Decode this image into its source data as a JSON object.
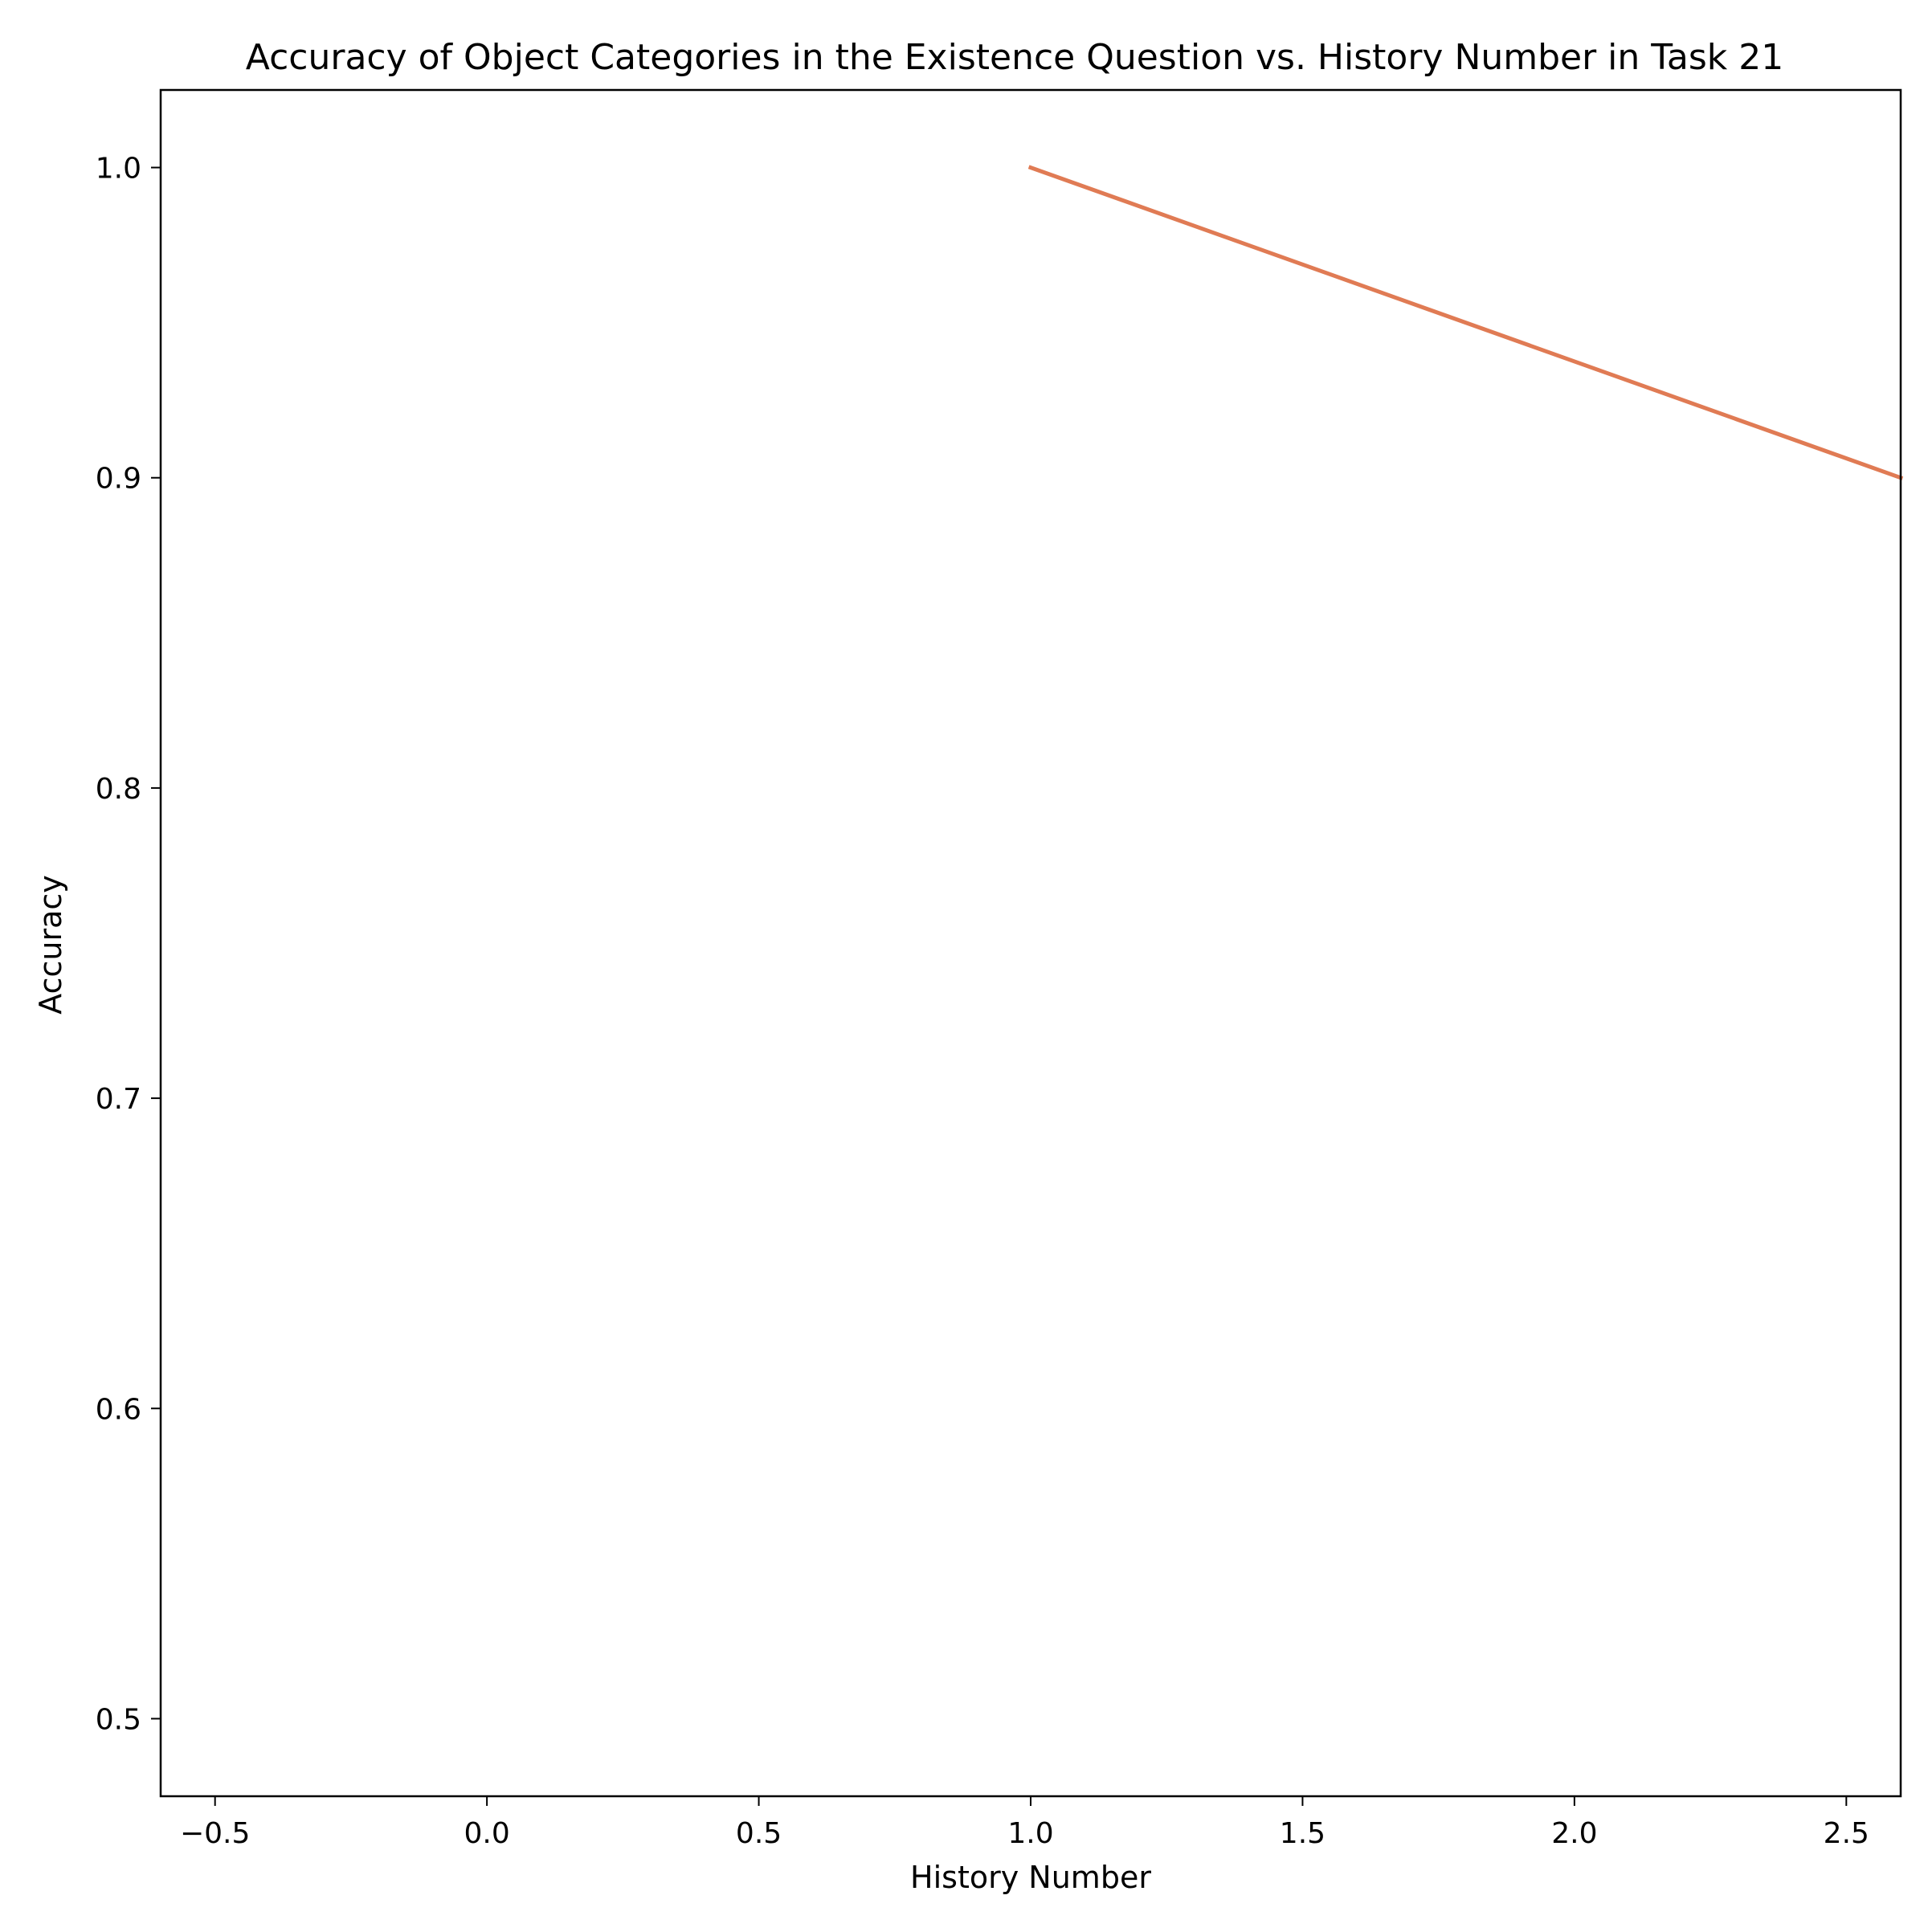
{
  "chart_data": {
    "type": "line",
    "title": "Accuracy of Object Categories in the Existence Question vs. History Number in Task 21",
    "xlabel": "History Number",
    "ylabel": "Accuracy",
    "xlim": [
      -0.6,
      2.6
    ],
    "ylim": [
      0.475,
      1.025
    ],
    "xticks": [
      -0.5,
      0.0,
      0.5,
      1.0,
      1.5,
      2.0,
      2.5
    ],
    "xtick_labels": [
      "−0.5",
      "0.0",
      "0.5",
      "1.0",
      "1.5",
      "2.0",
      "2.5"
    ],
    "yticks": [
      0.5,
      0.6,
      0.7,
      0.8,
      0.9,
      1.0
    ],
    "ytick_labels": [
      "0.5",
      "0.6",
      "0.7",
      "0.8",
      "0.9",
      "1.0"
    ],
    "grid": false,
    "legend": "none",
    "series": [
      {
        "color": "#e07b54",
        "x": [
          1.0,
          2.6
        ],
        "y": [
          1.0,
          0.9
        ]
      }
    ]
  }
}
